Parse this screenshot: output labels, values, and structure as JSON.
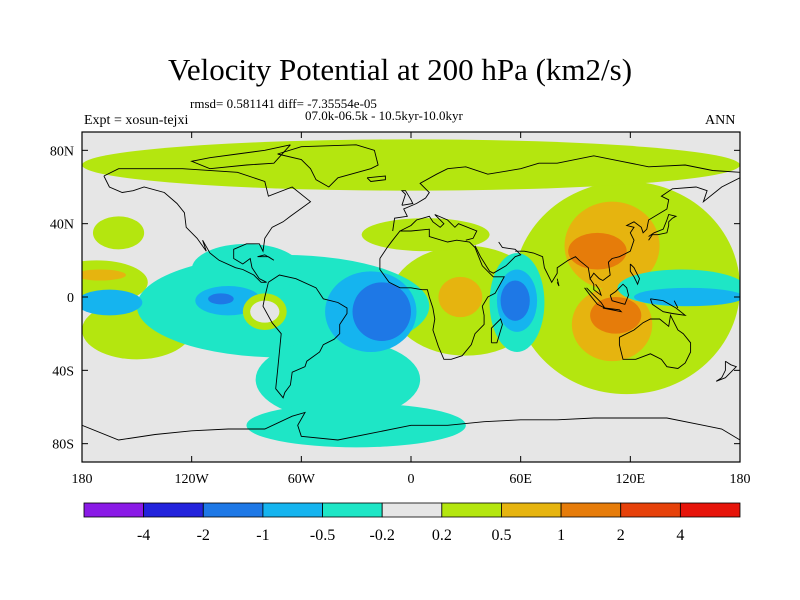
{
  "chart_data": {
    "type": "heatmap",
    "title": "Velocity Potential at 200 hPa (km2/s)",
    "stats_label": "rmsd= 0.581141 diff= -7.35554e-05",
    "period_label": "07.0k-06.5k - 10.5kyr-10.0kyr",
    "experiment_label": "Expt = xosun-tejxi",
    "season_label": "ANN",
    "xlim": [
      -180,
      180
    ],
    "ylim": [
      -90,
      90
    ],
    "x_ticks": [
      {
        "value": -180,
        "label": "180"
      },
      {
        "value": -120,
        "label": "120W"
      },
      {
        "value": -60,
        "label": "60W"
      },
      {
        "value": 0,
        "label": "0"
      },
      {
        "value": 60,
        "label": "60E"
      },
      {
        "value": 120,
        "label": "120E"
      },
      {
        "value": 180,
        "label": "180"
      }
    ],
    "y_ticks": [
      {
        "value": 80,
        "label": "80N"
      },
      {
        "value": 40,
        "label": "40N"
      },
      {
        "value": 0,
        "label": "0"
      },
      {
        "value": -40,
        "label": "40S"
      },
      {
        "value": -80,
        "label": "80S"
      }
    ],
    "colorbar": {
      "boundaries": [
        "-4",
        "-2",
        "-1",
        "-0.5",
        "-0.2",
        "0.2",
        "0.5",
        "1",
        "2",
        "4"
      ],
      "colors": [
        "#8a1ae6",
        "#2323dc",
        "#1e78e6",
        "#15b4ef",
        "#1ee6c6",
        "#e6e6e6",
        "#b4e60f",
        "#e6b40f",
        "#e67c0a",
        "#e6410a",
        "#e6140a"
      ]
    },
    "regions": [
      {
        "level": 0.35,
        "lon": -172,
        "lat": 8,
        "rx": 28,
        "ry": 12
      },
      {
        "level": 0.35,
        "lon": -150,
        "lat": -18,
        "rx": 30,
        "ry": 16
      },
      {
        "level": 0.35,
        "lon": 30,
        "lat": -2,
        "rx": 42,
        "ry": 30
      },
      {
        "level": 0.35,
        "lon": 118,
        "lat": 5,
        "rx": 62,
        "ry": 58
      },
      {
        "level": 0.35,
        "lon": -160,
        "lat": 35,
        "rx": 14,
        "ry": 9
      },
      {
        "level": 0.35,
        "lon": -103,
        "lat": -10,
        "rx": 14,
        "ry": 11
      },
      {
        "level": 0.35,
        "lon": 0,
        "lat": 72,
        "rx": 180,
        "ry": 14
      },
      {
        "level": 0.35,
        "lon": 8,
        "lat": 34,
        "rx": 35,
        "ry": 9
      },
      {
        "level": 0.75,
        "lon": 27,
        "lat": 0,
        "rx": 12,
        "ry": 11
      },
      {
        "level": 0.75,
        "lon": 110,
        "lat": 28,
        "rx": 26,
        "ry": 24
      },
      {
        "level": 0.75,
        "lon": 110,
        "lat": -15,
        "rx": 22,
        "ry": 20
      },
      {
        "level": 0.75,
        "lon": -170,
        "lat": 12,
        "rx": 14,
        "ry": 3
      },
      {
        "level": 1.5,
        "lon": 102,
        "lat": 25,
        "rx": 16,
        "ry": 10
      },
      {
        "level": 1.5,
        "lon": 112,
        "lat": -10,
        "rx": 14,
        "ry": 10
      },
      {
        "level": -0.35,
        "lon": -70,
        "lat": -5,
        "rx": 80,
        "ry": 28
      },
      {
        "level": -0.35,
        "lon": -90,
        "lat": 15,
        "rx": 30,
        "ry": 14
      },
      {
        "level": -0.35,
        "lon": -40,
        "lat": -45,
        "rx": 45,
        "ry": 22
      },
      {
        "level": -0.35,
        "lon": -30,
        "lat": -70,
        "rx": 60,
        "ry": 12
      },
      {
        "level": -0.35,
        "lon": 58,
        "lat": -3,
        "rx": 15,
        "ry": 27
      },
      {
        "level": -0.35,
        "lon": 148,
        "lat": 5,
        "rx": 35,
        "ry": 10
      },
      {
        "level": -0.75,
        "lon": -165,
        "lat": -3,
        "rx": 18,
        "ry": 7
      },
      {
        "level": -0.75,
        "lon": -100,
        "lat": -2,
        "rx": 18,
        "ry": 8
      },
      {
        "level": -0.75,
        "lon": -22,
        "lat": -8,
        "rx": 25,
        "ry": 22
      },
      {
        "level": -0.75,
        "lon": 58,
        "lat": -2,
        "rx": 11,
        "ry": 17
      },
      {
        "level": -0.75,
        "lon": 152,
        "lat": 0,
        "rx": 30,
        "ry": 5
      },
      {
        "level": -1.5,
        "lon": -16,
        "lat": -8,
        "rx": 16,
        "ry": 16
      },
      {
        "level": -1.5,
        "lon": 57,
        "lat": -2,
        "rx": 8,
        "ry": 11
      },
      {
        "level": -1.5,
        "lon": -104,
        "lat": -1,
        "rx": 7,
        "ry": 3
      },
      {
        "level": 0.35,
        "lon": -80,
        "lat": -8,
        "rx": 12,
        "ry": 10
      },
      {
        "level": 0.05,
        "lon": -80,
        "lat": -8,
        "rx": 8,
        "ry": 6
      }
    ]
  }
}
